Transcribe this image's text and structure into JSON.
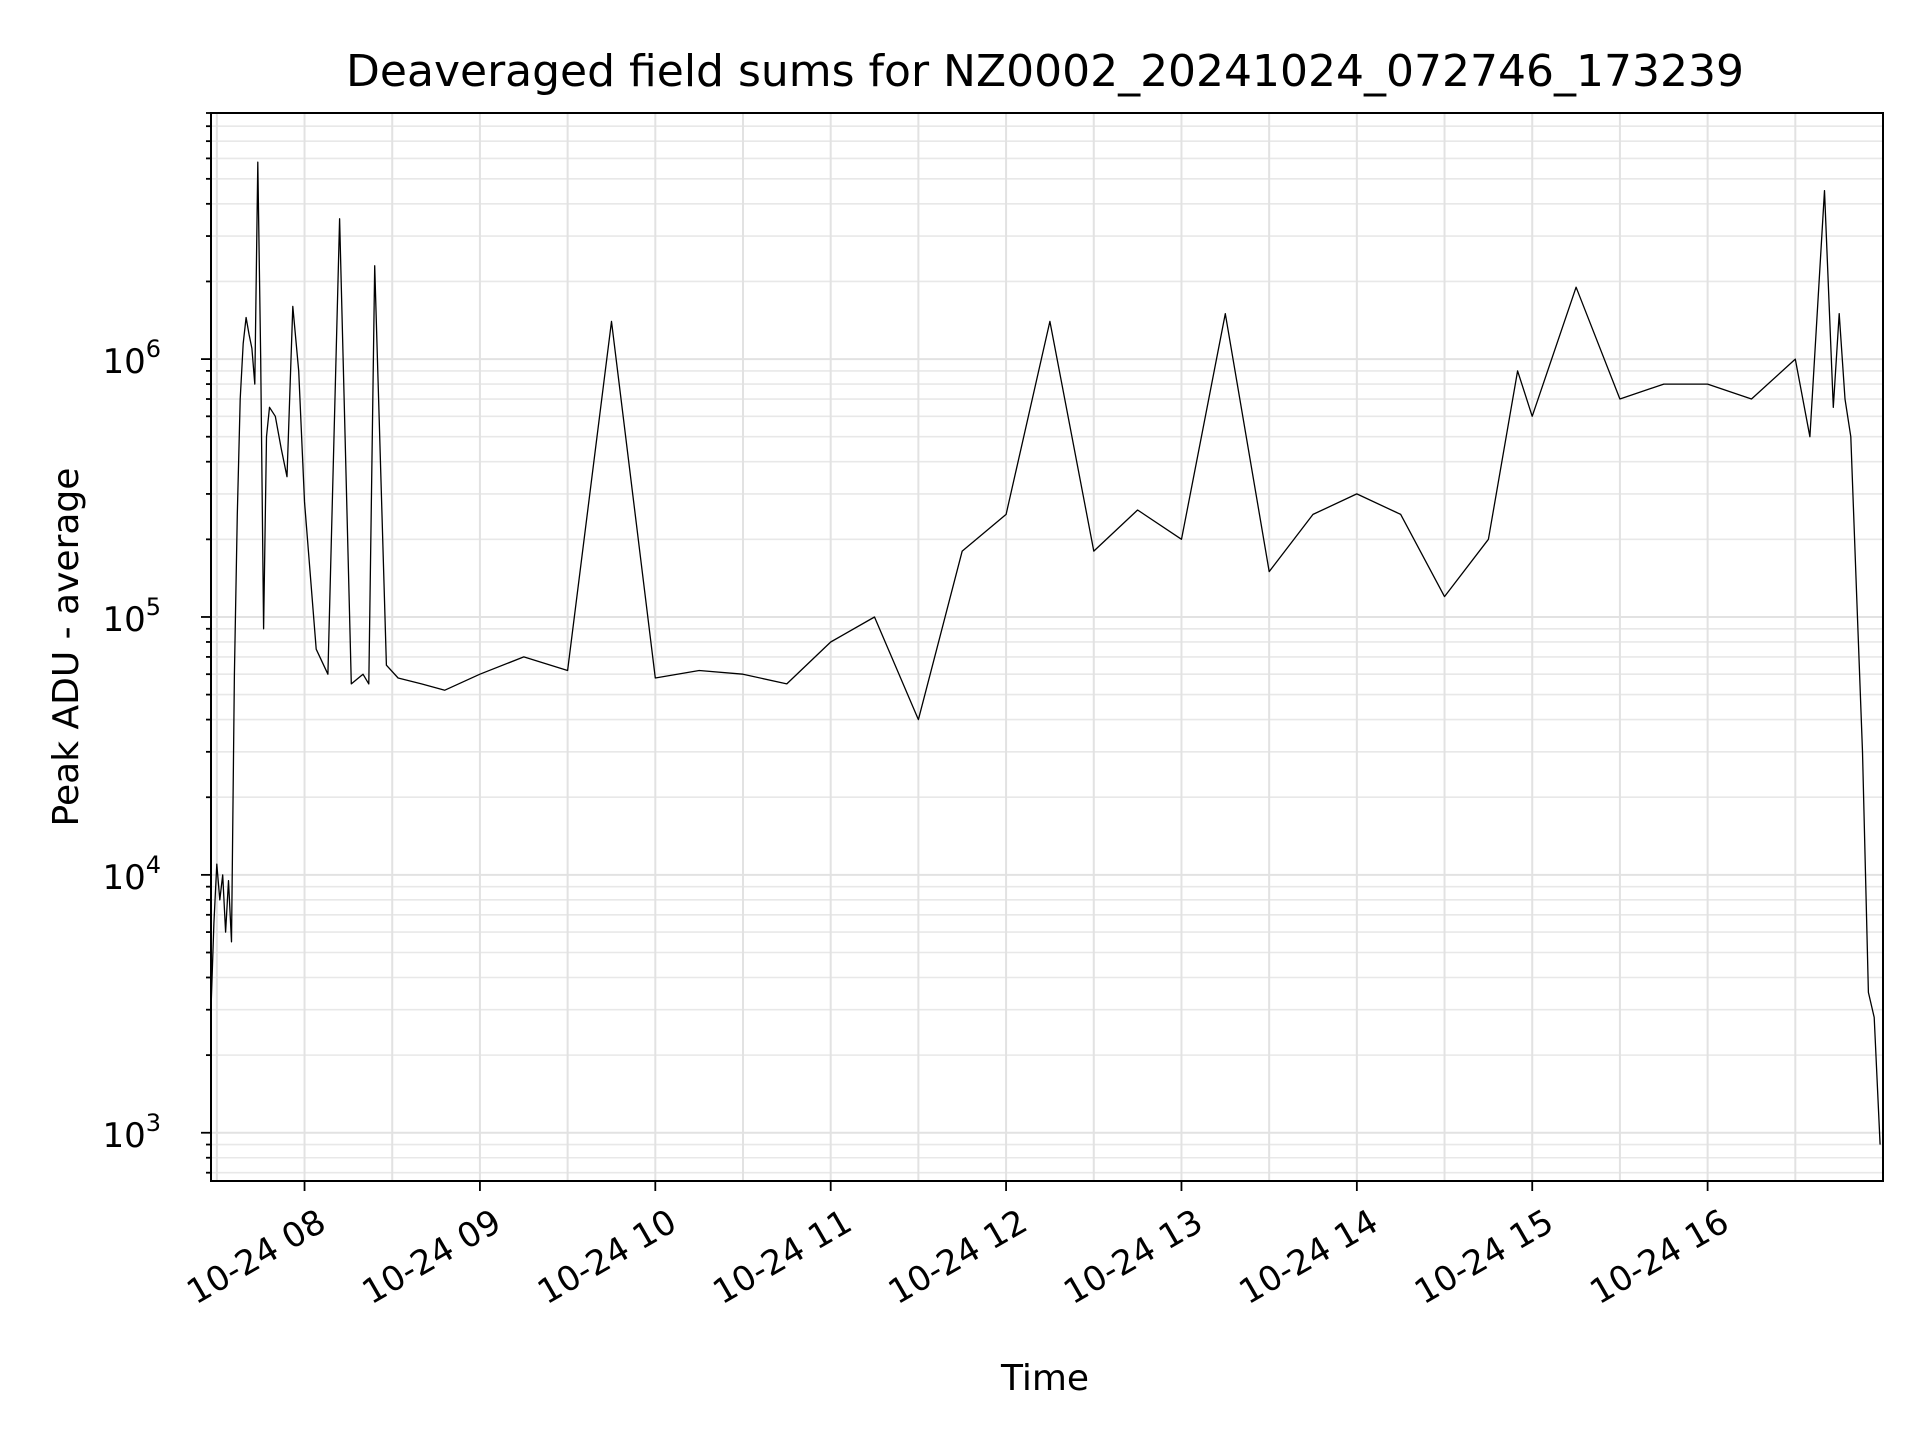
{
  "chart_data": {
    "type": "line",
    "title": "Deaveraged field sums for NZ0002_20241024_072746_173239",
    "xlabel": "Time",
    "ylabel": "Peak ADU - average",
    "yscale": "log",
    "xlim": [
      "2024-10-24T07:28:00",
      "2024-10-24T17:00:00"
    ],
    "ylim": [
      650,
      9000000
    ],
    "grid": true,
    "line_color": "#000000",
    "x_tick_labels": [
      {
        "time": "2024-10-24T08:00:00",
        "label": "10-24 08"
      },
      {
        "time": "2024-10-24T09:00:00",
        "label": "10-24 09"
      },
      {
        "time": "2024-10-24T10:00:00",
        "label": "10-24 10"
      },
      {
        "time": "2024-10-24T11:00:00",
        "label": "10-24 11"
      },
      {
        "time": "2024-10-24T12:00:00",
        "label": "10-24 12"
      },
      {
        "time": "2024-10-24T13:00:00",
        "label": "10-24 13"
      },
      {
        "time": "2024-10-24T14:00:00",
        "label": "10-24 14"
      },
      {
        "time": "2024-10-24T15:00:00",
        "label": "10-24 15"
      },
      {
        "time": "2024-10-24T16:00:00",
        "label": "10-24 16"
      }
    ],
    "y_ticks": [
      {
        "value": 1000,
        "base": "10",
        "exp": "3"
      },
      {
        "value": 10000,
        "base": "10",
        "exp": "4"
      },
      {
        "value": 100000,
        "base": "10",
        "exp": "5"
      },
      {
        "value": 1000000,
        "base": "10",
        "exp": "6"
      }
    ],
    "series": [
      {
        "x": [
          "2024-10-24T07:28:00",
          "2024-10-24T07:29:00",
          "2024-10-24T07:30:00",
          "2024-10-24T07:31:00",
          "2024-10-24T07:32:00",
          "2024-10-24T07:33:00",
          "2024-10-24T07:34:00",
          "2024-10-24T07:35:00",
          "2024-10-24T07:36:00",
          "2024-10-24T07:37:00",
          "2024-10-24T07:38:00",
          "2024-10-24T07:39:00",
          "2024-10-24T07:40:00",
          "2024-10-24T07:41:00",
          "2024-10-24T07:42:00",
          "2024-10-24T07:43:00",
          "2024-10-24T07:44:00",
          "2024-10-24T07:45:00",
          "2024-10-24T07:46:00",
          "2024-10-24T07:47:00",
          "2024-10-24T07:48:00",
          "2024-10-24T07:50:00",
          "2024-10-24T07:52:00",
          "2024-10-24T07:54:00",
          "2024-10-24T07:56:00",
          "2024-10-24T07:58:00",
          "2024-10-24T08:00:00",
          "2024-10-24T08:04:00",
          "2024-10-24T08:08:00",
          "2024-10-24T08:12:00",
          "2024-10-24T08:16:00",
          "2024-10-24T08:20:00",
          "2024-10-24T08:22:00",
          "2024-10-24T08:24:00",
          "2024-10-24T08:28:00",
          "2024-10-24T08:32:00",
          "2024-10-24T08:40:00",
          "2024-10-24T08:48:00",
          "2024-10-24T09:00:00",
          "2024-10-24T09:15:00",
          "2024-10-24T09:30:00",
          "2024-10-24T09:45:00",
          "2024-10-24T10:00:00",
          "2024-10-24T10:15:00",
          "2024-10-24T10:30:00",
          "2024-10-24T10:45:00",
          "2024-10-24T11:00:00",
          "2024-10-24T11:15:00",
          "2024-10-24T11:30:00",
          "2024-10-24T11:45:00",
          "2024-10-24T12:00:00",
          "2024-10-24T12:15:00",
          "2024-10-24T12:30:00",
          "2024-10-24T12:45:00",
          "2024-10-24T13:00:00",
          "2024-10-24T13:15:00",
          "2024-10-24T13:30:00",
          "2024-10-24T13:45:00",
          "2024-10-24T14:00:00",
          "2024-10-24T14:15:00",
          "2024-10-24T14:30:00",
          "2024-10-24T14:45:00",
          "2024-10-24T14:55:00",
          "2024-10-24T15:00:00",
          "2024-10-24T15:15:00",
          "2024-10-24T15:30:00",
          "2024-10-24T15:45:00",
          "2024-10-24T16:00:00",
          "2024-10-24T16:15:00",
          "2024-10-24T16:30:00",
          "2024-10-24T16:35:00",
          "2024-10-24T16:40:00",
          "2024-10-24T16:43:00",
          "2024-10-24T16:45:00",
          "2024-10-24T16:47:00",
          "2024-10-24T16:49:00",
          "2024-10-24T16:51:00",
          "2024-10-24T16:53:00",
          "2024-10-24T16:55:00",
          "2024-10-24T16:57:00",
          "2024-10-24T16:59:00"
        ],
        "y": [
          3000,
          6500,
          11000,
          8000,
          10000,
          6000,
          9500,
          5500,
          60000,
          250000,
          700000,
          1150000,
          1450000,
          1250000,
          1100000,
          800000,
          5800000,
          1000000,
          90000,
          500000,
          650000,
          600000,
          450000,
          350000,
          1600000,
          900000,
          280000,
          75000,
          60000,
          3500000,
          55000,
          60000,
          55000,
          2300000,
          65000,
          58000,
          55000,
          52000,
          60000,
          70000,
          62000,
          1400000,
          58000,
          62000,
          60000,
          55000,
          80000,
          100000,
          40000,
          180000,
          250000,
          1400000,
          180000,
          260000,
          200000,
          1500000,
          150000,
          250000,
          300000,
          250000,
          120000,
          200000,
          900000,
          600000,
          1900000,
          700000,
          800000,
          800000,
          700000,
          1000000,
          500000,
          4500000,
          650000,
          1500000,
          700000,
          500000,
          120000,
          30000,
          3500,
          2800,
          900
        ]
      }
    ]
  }
}
